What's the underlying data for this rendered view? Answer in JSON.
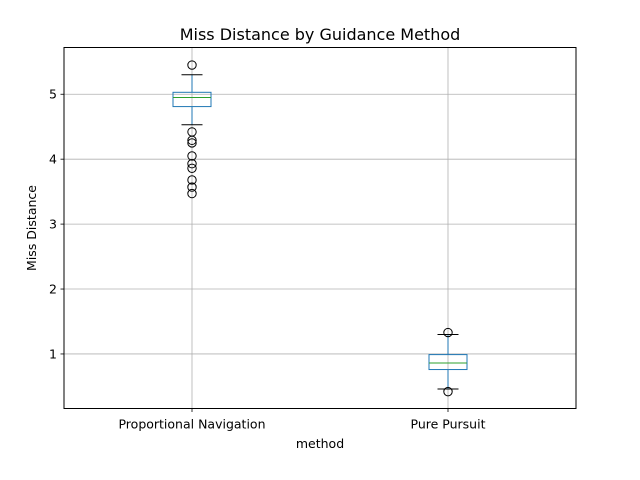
{
  "chart_data": {
    "type": "boxplot",
    "title": "Miss Distance by Guidance Method",
    "xlabel": "method",
    "ylabel": "Miss Distance",
    "ylim": [
      0.16,
      5.72
    ],
    "yticks": [
      1,
      2,
      3,
      4,
      5
    ],
    "grid": true,
    "categories": [
      "Proportional Navigation",
      "Pure Pursuit"
    ],
    "boxes": [
      {
        "name": "Proportional Navigation",
        "whisker_low": 4.53,
        "q1": 4.81,
        "median": 4.95,
        "q3": 5.03,
        "whisker_high": 5.3,
        "outliers": [
          5.45,
          4.42,
          4.29,
          4.25,
          4.05,
          3.93,
          3.86,
          3.68,
          3.57,
          3.47
        ]
      },
      {
        "name": "Pure Pursuit",
        "whisker_low": 0.46,
        "q1": 0.76,
        "median": 0.86,
        "q3": 0.99,
        "whisker_high": 1.3,
        "outliers": [
          1.33,
          0.42
        ]
      }
    ],
    "colors": {
      "box": "#1f77b4",
      "median": "#2ca02c",
      "whisker_cap": "#000000",
      "outlier": "#000000",
      "grid": "#b0b0b0"
    }
  }
}
